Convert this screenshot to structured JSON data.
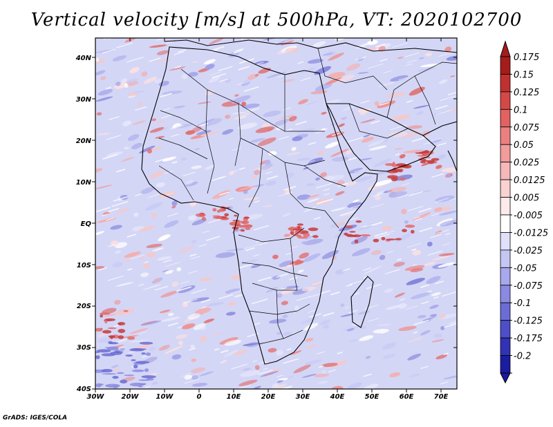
{
  "title": "Vertical velocity [m/s] at 500hPa, VT: 2020102700",
  "y_axis_labels": [
    "40N",
    "30N",
    "20N",
    "10N",
    "EQ",
    "10S",
    "20S",
    "30S",
    "40S"
  ],
  "x_axis_labels": [
    "30W",
    "20W",
    "10W",
    "0",
    "10E",
    "20E",
    "30E",
    "40E",
    "50E",
    "60E",
    "70E"
  ],
  "colorbar": {
    "labels": [
      "0.175",
      "0.15",
      "0.125",
      "0.1",
      "0.075",
      "0.05",
      "0.025",
      "0.0125",
      "0.005",
      "-0.005",
      "-0.0125",
      "-0.025",
      "-0.05",
      "-0.075",
      "-0.1",
      "-0.125",
      "-0.175",
      "-0.2"
    ],
    "colors": [
      "#a51c1c",
      "#c03030",
      "#d44848",
      "#e26262",
      "#ec8080",
      "#f29c9c",
      "#f6b8b8",
      "#fad2d2",
      "#fdeaea",
      "#ffffff",
      "#e0e0fb",
      "#c6c6f4",
      "#a8a8ec",
      "#8a8ae2",
      "#6c6cd6",
      "#4e4ec8",
      "#3232b4",
      "#1c1ca0"
    ]
  },
  "credit": "GrADS: IGES/COLA",
  "colors": {
    "background": "#ffffff",
    "frame": "#000000",
    "field_base": "#d4d6f6"
  }
}
